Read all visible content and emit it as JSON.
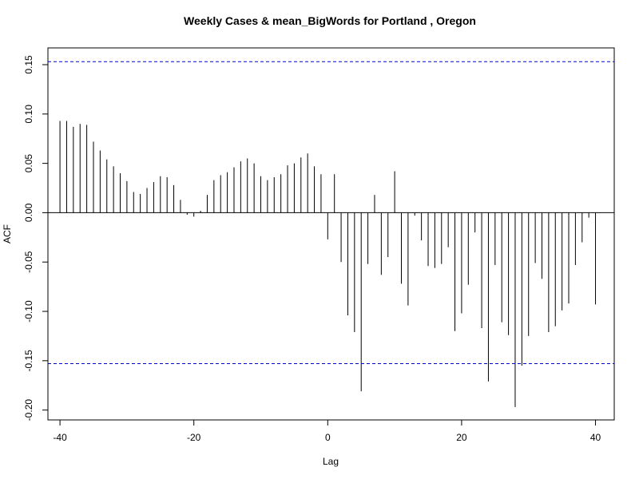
{
  "chart_data": {
    "type": "bar",
    "title": "Weekly Cases & mean_BigWords for Portland , Oregon",
    "xlabel": "Lag",
    "ylabel": "ACF",
    "xlim": [
      -41.8,
      42.8
    ],
    "ylim": [
      -0.21,
      0.167
    ],
    "x_ticks": [
      -40,
      -20,
      0,
      20,
      40
    ],
    "x_tick_labels": [
      "-40",
      "-20",
      "0",
      "20",
      "40"
    ],
    "y_ticks": [
      -0.2,
      -0.15,
      -0.1,
      -0.05,
      0.0,
      0.05,
      0.1,
      0.15
    ],
    "y_tick_labels": [
      "-0.20",
      "-0.15",
      "-0.10",
      "-0.05",
      "0.00",
      "0.05",
      "0.10",
      "0.15"
    ],
    "confidence_limit": 0.153,
    "confidence_color": "#0000cc",
    "bar_color": "#000000",
    "grid": false,
    "lags": [
      -40,
      -39,
      -38,
      -37,
      -36,
      -35,
      -34,
      -33,
      -32,
      -31,
      -30,
      -29,
      -28,
      -27,
      -26,
      -25,
      -24,
      -23,
      -22,
      -21,
      -20,
      -19,
      -18,
      -17,
      -16,
      -15,
      -14,
      -13,
      -12,
      -11,
      -10,
      -9,
      -8,
      -7,
      -6,
      -5,
      -4,
      -3,
      -2,
      -1,
      0,
      1,
      2,
      3,
      4,
      5,
      6,
      7,
      8,
      9,
      10,
      11,
      12,
      13,
      14,
      15,
      16,
      17,
      18,
      19,
      20,
      21,
      22,
      23,
      24,
      25,
      26,
      27,
      28,
      29,
      30,
      31,
      32,
      33,
      34,
      35,
      36,
      37,
      38,
      39,
      40
    ],
    "acf": [
      0.093,
      0.093,
      0.087,
      0.09,
      0.089,
      0.072,
      0.063,
      0.054,
      0.047,
      0.04,
      0.032,
      0.021,
      0.019,
      0.025,
      0.031,
      0.037,
      0.036,
      0.028,
      0.013,
      -0.002,
      -0.004,
      0.002,
      0.018,
      0.033,
      0.038,
      0.041,
      0.046,
      0.052,
      0.055,
      0.05,
      0.037,
      0.033,
      0.036,
      0.039,
      0.048,
      0.05,
      0.056,
      0.06,
      0.047,
      0.039,
      -0.027,
      0.039,
      -0.05,
      -0.104,
      -0.121,
      -0.181,
      -0.052,
      0.018,
      -0.063,
      -0.045,
      0.042,
      -0.072,
      -0.094,
      -0.003,
      -0.028,
      -0.054,
      -0.056,
      -0.052,
      -0.035,
      -0.12,
      -0.102,
      -0.073,
      -0.02,
      -0.117,
      -0.171,
      -0.053,
      -0.111,
      -0.124,
      -0.197,
      -0.155,
      -0.125,
      -0.051,
      -0.067,
      -0.121,
      -0.115,
      -0.099,
      -0.092,
      -0.053,
      -0.03,
      -0.005,
      -0.093
    ]
  }
}
